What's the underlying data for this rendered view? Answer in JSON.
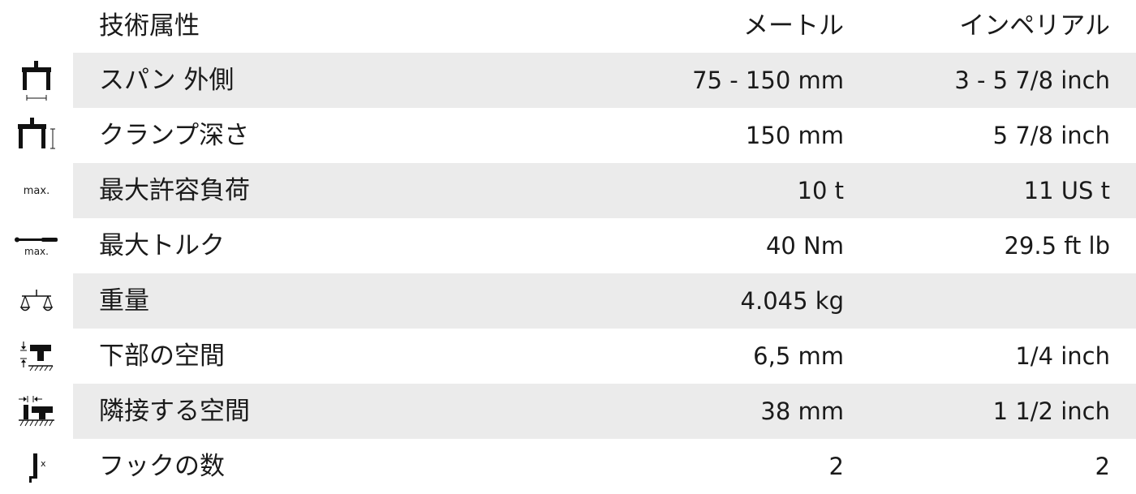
{
  "header": {
    "property": "技術属性",
    "metric": "メートル",
    "imperial": "インペリアル"
  },
  "rows": [
    {
      "icon": "puller-span-icon",
      "label": "スパン 外側",
      "metric": "75 - 150 mm",
      "imperial": "3 - 5 7/8 inch"
    },
    {
      "icon": "clamping-depth-icon",
      "label": "クランプ深さ",
      "metric": "150 mm",
      "imperial": "5 7/8 inch"
    },
    {
      "icon": "max-load-icon",
      "icon_text": "max.",
      "label": "最大許容負荷",
      "metric": "10 t",
      "imperial": "11 US t"
    },
    {
      "icon": "max-torque-icon",
      "icon_text": "max.",
      "label": "最大トルク",
      "metric": "40 Nm",
      "imperial": "29.5 ft lb"
    },
    {
      "icon": "scale-weight-icon",
      "label": "重量",
      "metric": "4.045 kg",
      "imperial": ""
    },
    {
      "icon": "clearance-below-icon",
      "label": "下部の空間",
      "metric": "6,5 mm",
      "imperial": "1/4 inch"
    },
    {
      "icon": "adjacent-clearance-icon",
      "label": "隣接する空間",
      "metric": "38 mm",
      "imperial": "1 1/2 inch"
    },
    {
      "icon": "hook-count-icon",
      "icon_text": "x",
      "label": "フックの数",
      "metric": "2",
      "imperial": "2"
    }
  ]
}
